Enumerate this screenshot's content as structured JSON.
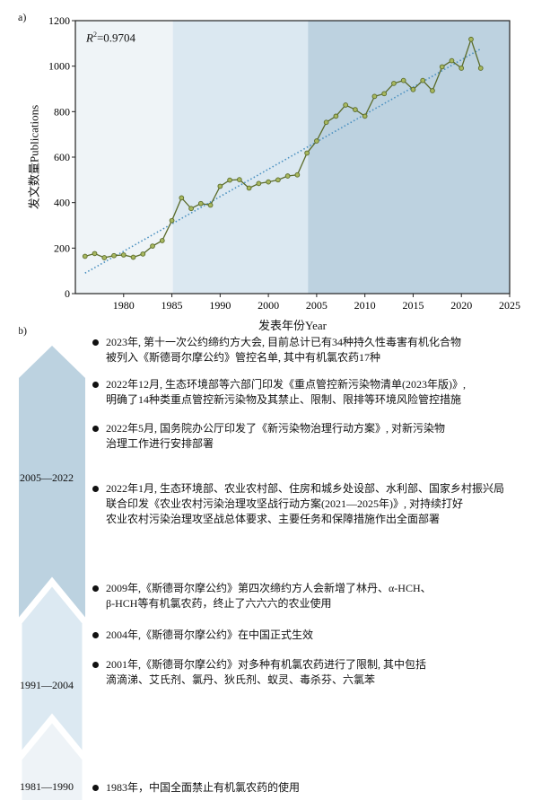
{
  "panel_a_label": "a)",
  "panel_b_label": "b)",
  "chart_data": {
    "type": "line",
    "title": "",
    "xlabel": "发表年份Year",
    "ylabel": "发文数量Publications",
    "annotation": "R²=0.9704",
    "annotation_parts": {
      "r": "R",
      "sup": "2",
      "rest": "=0.9704"
    },
    "ylim": [
      0,
      1200
    ],
    "yticks": [
      0,
      200,
      400,
      600,
      800,
      1000,
      1200
    ],
    "x_index_range": [
      -1,
      44
    ],
    "xticks": [
      {
        "at": 4,
        "label": "1980"
      },
      {
        "at": 9,
        "label": "1985"
      },
      {
        "at": 14,
        "label": "1990"
      },
      {
        "at": 19,
        "label": "2000"
      },
      {
        "at": 24,
        "label": "2005"
      },
      {
        "at": 29,
        "label": "2010"
      },
      {
        "at": 34,
        "label": "2015"
      },
      {
        "at": 39,
        "label": "2020"
      },
      {
        "at": 44,
        "label": "2025"
      }
    ],
    "series": [
      {
        "name": "Publications",
        "color": "#5a6b2a",
        "marker_fill": "#a8b860",
        "values": [
          164,
          176,
          158,
          167,
          170,
          160,
          174,
          209,
          233,
          321,
          421,
          374,
          396,
          389,
          472,
          499,
          501,
          464,
          484,
          491,
          500,
          517,
          522,
          618,
          671,
          753,
          780,
          829,
          809,
          780,
          867,
          879,
          924,
          937,
          897,
          937,
          892,
          997,
          1024,
          991,
          1118,
          991
        ]
      }
    ],
    "trendline": {
      "color": "#4a90c0",
      "style": "dotted",
      "start": {
        "at": 0,
        "value": 90
      },
      "end": {
        "at": 41,
        "value": 1076
      }
    },
    "shaded_regions": [
      {
        "from": -1,
        "to": 9.1,
        "color": "#eff4f7"
      },
      {
        "from": 9.1,
        "to": 23.1,
        "color": "#dbe8f1"
      },
      {
        "from": 23.1,
        "to": 44,
        "color": "#bdd2e0"
      }
    ],
    "grid": false
  },
  "timeline": {
    "periods": [
      {
        "label": "2005—2022",
        "color": "#bcd2e0"
      },
      {
        "label": "1991—2004",
        "color": "#dce9f2"
      },
      {
        "label": "1981—1990",
        "color": "#eef3f7"
      }
    ],
    "items": [
      {
        "lines": [
          "2023年, 第十一次公约缔约方大会, 目前总计已有34种持久性毒害有机化合物",
          "被列入《斯德哥尔摩公约》管控名单, 其中有机氯农药17种"
        ]
      },
      {
        "lines": [
          "2022年12月, 生态环境部等六部门印发《重点管控新污染物清单(2023年版)》,",
          "明确了14种类重点管控新污染物及其禁止、限制、限排等环境风险管控措施"
        ]
      },
      {
        "lines": [
          "2022年5月, 国务院办公厅印发了《新污染物治理行动方案》, 对新污染物",
          "治理工作进行安排部署"
        ]
      },
      {
        "lines": [
          "2022年1月, 生态环境部、农业农村部、住房和城乡处设部、水利部、国家乡村振兴局",
          "联合印发《农业农村污染治理攻坚战行动方案(2021—2025年)》, 对持续打好",
          "农业农村污染治理攻坚战总体要求、主要任务和保障措施作出全面部署"
        ]
      },
      {
        "lines": [
          "2009年,《斯德哥尔摩公约》第四次缔约方人会新增了林丹、α-HCH、",
          "β-HCH等有机氯农药，终止了六六六的农业使用"
        ]
      },
      {
        "lines": [
          "2004年,《斯德哥尔摩公约》在中国正式生效"
        ]
      },
      {
        "lines": [
          "2001年,《斯德哥尔摩公约》对多种有机氯农药进行了限制, 其中包括",
          "滴滴涕、艾氏剂、氯丹、狄氏剂、蚁灵、毒杀芬、六氯苯"
        ]
      },
      {
        "lines": [
          "1983年，中国全面禁止有机氯农药的使用"
        ]
      }
    ]
  }
}
